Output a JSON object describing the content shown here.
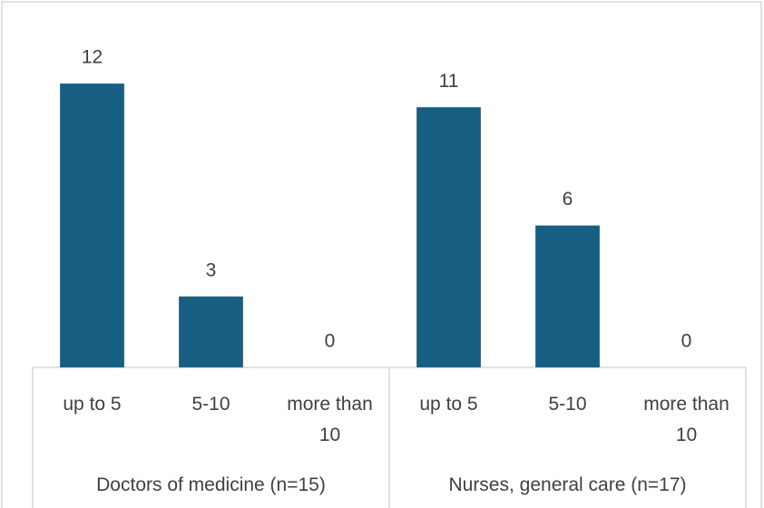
{
  "chart_data": {
    "type": "bar",
    "color": "#165e82",
    "ylim": [
      0,
      14
    ],
    "groups": [
      {
        "name": "Doctors of medicine (n=15)",
        "categories": [
          "up to 5",
          "5-10",
          "more than 10"
        ],
        "values": [
          12,
          3,
          0
        ]
      },
      {
        "name": "Nurses, general care (n=17)",
        "categories": [
          "up to 5",
          "5-10",
          "more than 10"
        ],
        "values": [
          11,
          6,
          0
        ]
      }
    ]
  }
}
